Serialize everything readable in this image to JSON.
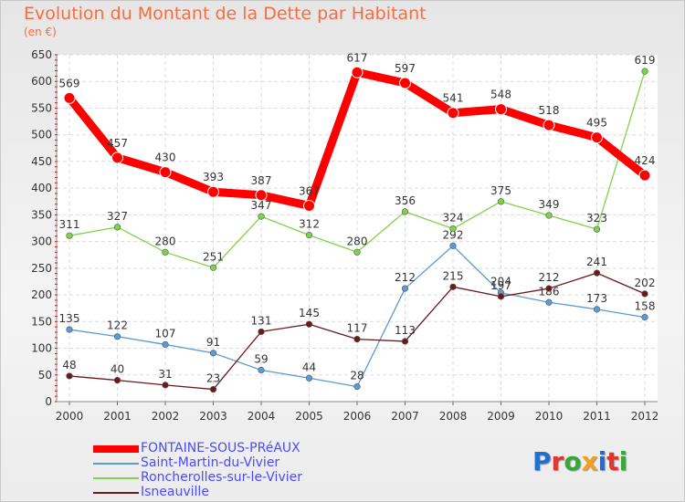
{
  "title": "Evolution du Montant de la Dette par Habitant",
  "subtitle": "(en €)",
  "logo": {
    "text": "Proxiti",
    "letters": [
      {
        "char": "P",
        "color": "#1e6fd0"
      },
      {
        "char": "r",
        "color": "#e2352b"
      },
      {
        "char": "o",
        "color": "#36a838"
      },
      {
        "char": "x",
        "color": "#f0a020"
      },
      {
        "char": "i",
        "color": "#1e6fd0"
      },
      {
        "char": "t",
        "color": "#e2352b"
      },
      {
        "char": "i",
        "color": "#36a838"
      }
    ]
  },
  "chart_data": {
    "type": "line",
    "title": "Evolution du Montant de la Dette par Habitant",
    "subtitle": "(en €)",
    "xlabel": "",
    "ylabel": "",
    "ylim": [
      0,
      650
    ],
    "yticks": [
      0,
      50,
      100,
      150,
      200,
      250,
      300,
      350,
      400,
      450,
      500,
      550,
      600,
      650
    ],
    "grid": true,
    "legend_position": "bottom-left",
    "categories": [
      "2000",
      "2001",
      "2002",
      "2003",
      "2004",
      "2005",
      "2006",
      "2007",
      "2008",
      "2009",
      "2010",
      "2011",
      "2012"
    ],
    "series": [
      {
        "name": "FONTAINE-SOUS-PRéAUX",
        "color": "#ff0000",
        "values": [
          569,
          457,
          430,
          393,
          387,
          367,
          617,
          597,
          541,
          548,
          518,
          495,
          424
        ]
      },
      {
        "name": "Saint-Martin-du-Vivier",
        "color": "#5b9bd5",
        "values": [
          135,
          122,
          107,
          91,
          59,
          44,
          28,
          212,
          292,
          204,
          186,
          173,
          158
        ]
      },
      {
        "name": "Roncherolles-sur-le-Vivier",
        "color": "#7fd34a",
        "values": [
          311,
          327,
          280,
          251,
          347,
          312,
          280,
          356,
          324,
          375,
          349,
          323,
          619
        ]
      },
      {
        "name": "Isneauville",
        "color": "#6b1a1a",
        "values": [
          48,
          40,
          31,
          23,
          131,
          145,
          117,
          113,
          215,
          197,
          212,
          241,
          202
        ]
      }
    ]
  }
}
